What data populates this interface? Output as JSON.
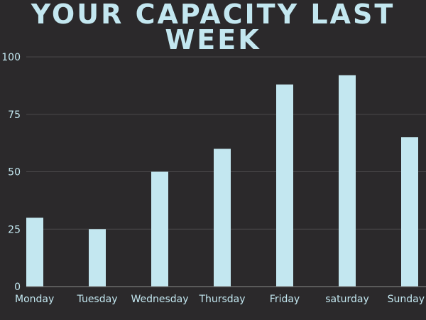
{
  "chart_data": {
    "type": "bar",
    "title": "YOUR CAPACITY LAST WEEK",
    "categories": [
      "Monday",
      "Tuesday",
      "Wednesday",
      "Thursday",
      "Friday",
      "saturday",
      "Sunday"
    ],
    "values": [
      30,
      25,
      50,
      60,
      88,
      92,
      65
    ],
    "ylim": [
      0,
      100
    ],
    "yticks": [
      "0",
      "25",
      "50",
      "75",
      "100"
    ],
    "grid": true,
    "legend": "none",
    "colors": {
      "background": "#2b292b",
      "bar": "#c3e7f0",
      "text": "#c3e7f0",
      "grid": "#4a484a",
      "axis": "#8a8a8a"
    }
  }
}
